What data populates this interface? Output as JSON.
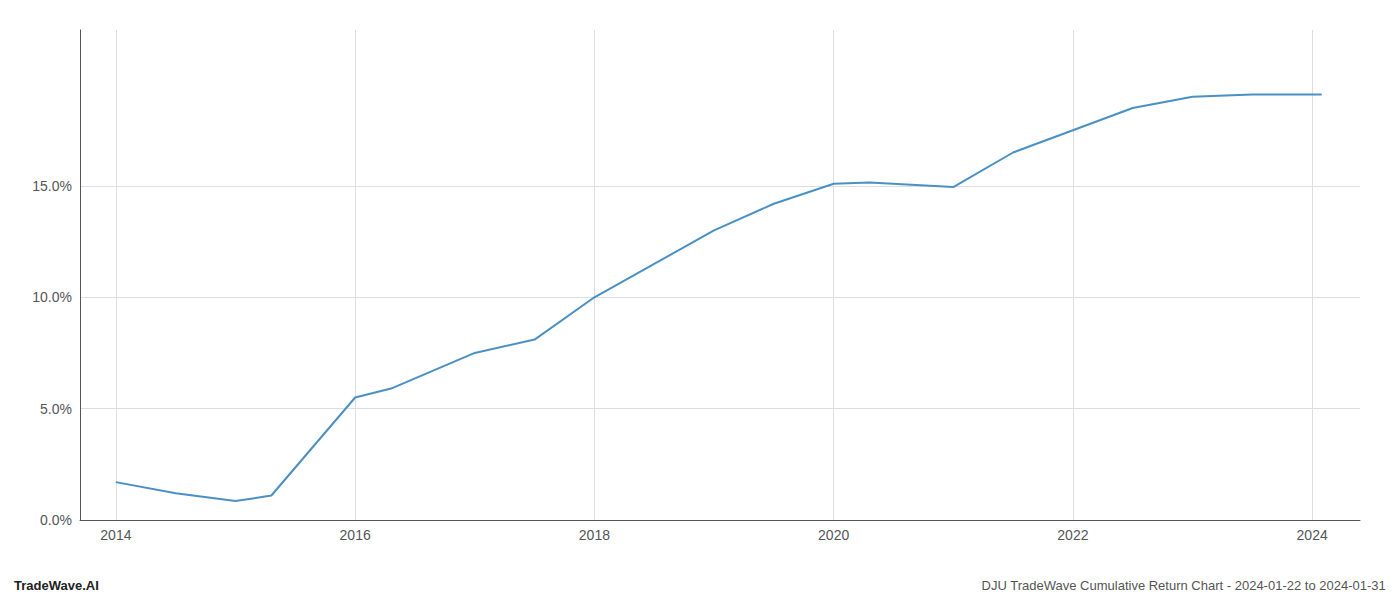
{
  "chart_data": {
    "type": "line",
    "x": [
      2014,
      2014.5,
      2015,
      2015.3,
      2016,
      2016.3,
      2017,
      2017.5,
      2018,
      2018.5,
      2019,
      2019.5,
      2020,
      2020.3,
      2021,
      2021.5,
      2022,
      2022.5,
      2023,
      2023.5,
      2024,
      2024.08
    ],
    "values": [
      1.7,
      1.2,
      0.85,
      1.1,
      5.5,
      5.9,
      7.5,
      8.1,
      10.0,
      11.5,
      13.0,
      14.2,
      15.1,
      15.15,
      14.95,
      16.5,
      17.5,
      18.5,
      19.0,
      19.1,
      19.1,
      19.1
    ],
    "color": "#4a90c4",
    "xlim": [
      2013.7,
      2024.4
    ],
    "xticks": [
      2014,
      2016,
      2018,
      2020,
      2022,
      2024
    ],
    "ylim": [
      0,
      22
    ],
    "yticks": [
      {
        "value": 0,
        "label": "0.0%"
      },
      {
        "value": 5,
        "label": "5.0%"
      },
      {
        "value": 10,
        "label": "10.0%"
      },
      {
        "value": 15,
        "label": "15.0%"
      }
    ],
    "grid": true,
    "annotations": [
      "TradeWave.AI",
      "DJU TradeWave Cumulative Return Chart - 2024-01-22 to 2024-01-31"
    ]
  }
}
